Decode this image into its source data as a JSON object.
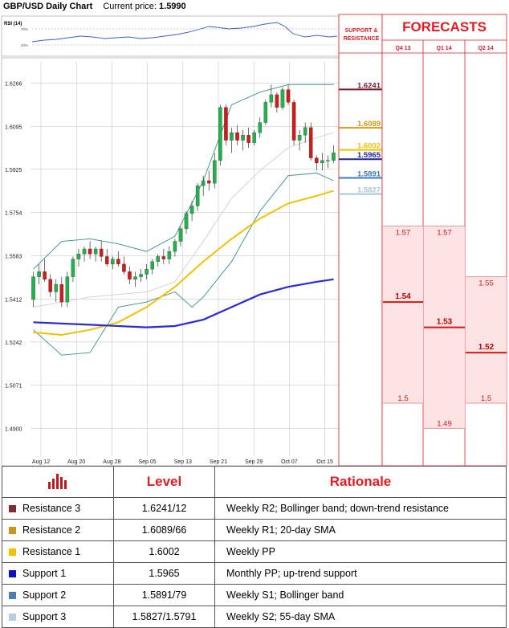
{
  "header": {
    "title": "GBP/USD Daily Chart",
    "price_label": "Current price:",
    "price_value": "1.5990"
  },
  "rsi": {
    "label": "RSI (14)",
    "tick_labels": [
      "70%",
      "30%"
    ]
  },
  "chart_data": {
    "type": "candlestick",
    "ylim": [
      1.48,
      1.635
    ],
    "y_ticks": [
      "1.6266",
      "1.6095",
      "1.5925",
      "1.5754",
      "1.5583",
      "1.5412",
      "1.5242",
      "1.5071",
      "1.4900"
    ],
    "x_ticks": [
      "Aug 12",
      "Aug 20",
      "Aug 28",
      "Sep 05",
      "Sep 13",
      "Sep 21",
      "Sep 29",
      "Oct 07",
      "Oct 15"
    ],
    "candles": [
      [
        1.541,
        1.552,
        1.538,
        1.55
      ],
      [
        1.55,
        1.555,
        1.547,
        1.552
      ],
      [
        1.552,
        1.557,
        1.548,
        1.549
      ],
      [
        1.549,
        1.551,
        1.542,
        1.544
      ],
      [
        1.544,
        1.549,
        1.54,
        1.547
      ],
      [
        1.547,
        1.55,
        1.538,
        1.54
      ],
      [
        1.54,
        1.552,
        1.538,
        1.55
      ],
      [
        1.55,
        1.558,
        1.548,
        1.557
      ],
      [
        1.557,
        1.561,
        1.554,
        1.559
      ],
      [
        1.559,
        1.562,
        1.556,
        1.561
      ],
      [
        1.561,
        1.564,
        1.557,
        1.559
      ],
      [
        1.559,
        1.562,
        1.556,
        1.561
      ],
      [
        1.561,
        1.564,
        1.556,
        1.558
      ],
      [
        1.558,
        1.561,
        1.554,
        1.555
      ],
      [
        1.555,
        1.558,
        1.553,
        1.557
      ],
      [
        1.557,
        1.56,
        1.554,
        1.555
      ],
      [
        1.555,
        1.558,
        1.551,
        1.552
      ],
      [
        1.552,
        1.554,
        1.547,
        1.549
      ],
      [
        1.549,
        1.552,
        1.546,
        1.55
      ],
      [
        1.55,
        1.553,
        1.548,
        1.551
      ],
      [
        1.551,
        1.555,
        1.549,
        1.553
      ],
      [
        1.553,
        1.557,
        1.551,
        1.556
      ],
      [
        1.556,
        1.559,
        1.554,
        1.558
      ],
      [
        1.558,
        1.561,
        1.555,
        1.557
      ],
      [
        1.557,
        1.562,
        1.555,
        1.56
      ],
      [
        1.56,
        1.565,
        1.558,
        1.564
      ],
      [
        1.564,
        1.57,
        1.562,
        1.569
      ],
      [
        1.569,
        1.576,
        1.567,
        1.575
      ],
      [
        1.575,
        1.58,
        1.572,
        1.578
      ],
      [
        1.578,
        1.587,
        1.576,
        1.586
      ],
      [
        1.586,
        1.59,
        1.582,
        1.588
      ],
      [
        1.588,
        1.592,
        1.584,
        1.587
      ],
      [
        1.587,
        1.599,
        1.585,
        1.596
      ],
      [
        1.596,
        1.618,
        1.594,
        1.617
      ],
      [
        1.617,
        1.618,
        1.602,
        1.604
      ],
      [
        1.604,
        1.609,
        1.599,
        1.607
      ],
      [
        1.607,
        1.61,
        1.602,
        1.604
      ],
      [
        1.604,
        1.608,
        1.6,
        1.606
      ],
      [
        1.606,
        1.609,
        1.601,
        1.603
      ],
      [
        1.603,
        1.608,
        1.602,
        1.607
      ],
      [
        1.607,
        1.613,
        1.605,
        1.611
      ],
      [
        1.611,
        1.62,
        1.61,
        1.619
      ],
      [
        1.619,
        1.626,
        1.617,
        1.622
      ],
      [
        1.622,
        1.623,
        1.615,
        1.617
      ],
      [
        1.617,
        1.625,
        1.616,
        1.624
      ],
      [
        1.624,
        1.626,
        1.618,
        1.619
      ],
      [
        1.619,
        1.62,
        1.602,
        1.604
      ],
      [
        1.604,
        1.608,
        1.6,
        1.606
      ],
      [
        1.606,
        1.611,
        1.603,
        1.609
      ],
      [
        1.609,
        1.611,
        1.596,
        1.597
      ],
      [
        1.597,
        1.598,
        1.592,
        1.595
      ],
      [
        1.595,
        1.599,
        1.592,
        1.596
      ],
      [
        1.596,
        1.598,
        1.593,
        1.596
      ],
      [
        1.596,
        1.602,
        1.595,
        1.599
      ]
    ],
    "bollinger_upper": [
      [
        0,
        1.553
      ],
      [
        5,
        1.564
      ],
      [
        10,
        1.565
      ],
      [
        15,
        1.563
      ],
      [
        20,
        1.56
      ],
      [
        25,
        1.566
      ],
      [
        30,
        1.588
      ],
      [
        35,
        1.618
      ],
      [
        40,
        1.623
      ],
      [
        45,
        1.626
      ],
      [
        50,
        1.626
      ],
      [
        53,
        1.626
      ]
    ],
    "bollinger_lower": [
      [
        0,
        1.529
      ],
      [
        5,
        1.519
      ],
      [
        10,
        1.52
      ],
      [
        15,
        1.538
      ],
      [
        20,
        1.54
      ],
      [
        25,
        1.544
      ],
      [
        28,
        1.538
      ],
      [
        30,
        1.542
      ],
      [
        35,
        1.556
      ],
      [
        40,
        1.576
      ],
      [
        45,
        1.59
      ],
      [
        50,
        1.591
      ],
      [
        53,
        1.588
      ]
    ],
    "sma20": [
      [
        0,
        1.538
      ],
      [
        10,
        1.542
      ],
      [
        20,
        1.544
      ],
      [
        25,
        1.548
      ],
      [
        30,
        1.564
      ],
      [
        35,
        1.581
      ],
      [
        40,
        1.592
      ],
      [
        45,
        1.601
      ],
      [
        50,
        1.605
      ],
      [
        53,
        1.607
      ]
    ],
    "sma55": [
      [
        0,
        1.528
      ],
      [
        5,
        1.527
      ],
      [
        10,
        1.529
      ],
      [
        15,
        1.532
      ],
      [
        20,
        1.538
      ],
      [
        25,
        1.546
      ],
      [
        30,
        1.556
      ],
      [
        35,
        1.565
      ],
      [
        40,
        1.573
      ],
      [
        45,
        1.579
      ],
      [
        50,
        1.582
      ],
      [
        53,
        1.584
      ]
    ],
    "sma200": [
      [
        0,
        1.532
      ],
      [
        10,
        1.531
      ],
      [
        20,
        1.53
      ],
      [
        25,
        1.5305
      ],
      [
        30,
        1.533
      ],
      [
        35,
        1.538
      ],
      [
        40,
        1.543
      ],
      [
        45,
        1.546
      ],
      [
        50,
        1.548
      ],
      [
        53,
        1.549
      ]
    ]
  },
  "support_resistance": {
    "title_line1": "SUPPORT &",
    "title_line2": "RESISTANCE",
    "levels": [
      {
        "label": "1.6241",
        "value": 1.6241,
        "color": "#7b1f2e"
      },
      {
        "label": "1.6089",
        "value": 1.6089,
        "color": "#d49a1e"
      },
      {
        "label": "1.6002",
        "value": 1.6002,
        "color": "#f2c200"
      },
      {
        "label": "1.5965",
        "value": 1.5965,
        "color": "#1f1fa8"
      },
      {
        "label": "1.5891",
        "value": 1.5891,
        "color": "#3d7ab8"
      },
      {
        "label": "1.5827",
        "value": 1.5827,
        "color": "#a8c8d8"
      }
    ]
  },
  "forecasts": {
    "title": "FORECASTS",
    "columns": [
      {
        "label": "Q4 13",
        "high": 1.57,
        "mid": 1.54,
        "low": 1.5,
        "high_label": "1.57",
        "mid_label": "1.54",
        "low_label": "1.5"
      },
      {
        "label": "Q1 14",
        "high": 1.57,
        "mid": 1.53,
        "low": 1.49,
        "high_label": "1.57",
        "mid_label": "1.53",
        "low_label": "1.49"
      },
      {
        "label": "Q2 14",
        "high": 1.55,
        "mid": 1.52,
        "low": 1.5,
        "high_label": "1.55",
        "mid_label": "1.52",
        "low_label": "1.5"
      }
    ]
  },
  "table": {
    "header_level": "Level",
    "header_rationale": "Rationale",
    "rows": [
      {
        "name": "Resistance 3",
        "level": "1.6241/12",
        "rationale": "Weekly R2; Bollinger band; down-trend resistance",
        "color": "#7b2e2e"
      },
      {
        "name": "Resistance 2",
        "level": "1.6089/66",
        "rationale": "Weekly R1; 20-day SMA",
        "color": "#c8961e"
      },
      {
        "name": "Resistance 1",
        "level": "1.6002",
        "rationale": "Weekly PP",
        "color": "#f2c200"
      },
      {
        "name": "Support 1",
        "level": "1.5965",
        "rationale": "Monthly PP; up-trend support",
        "color": "#1010c0"
      },
      {
        "name": "Support 2",
        "level": "1.5891/79",
        "rationale": "Weekly S1; Bollinger band",
        "color": "#4a7fae"
      },
      {
        "name": "Support 3",
        "level": "1.5827/1.5791",
        "rationale": "Weekly S2; 55-day SMA",
        "color": "#b8cde0"
      }
    ]
  }
}
